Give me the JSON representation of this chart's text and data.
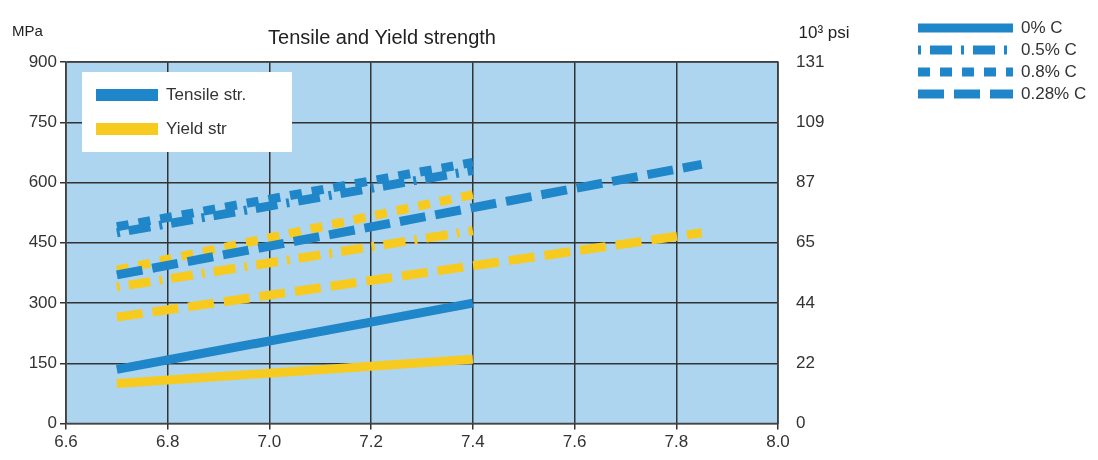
{
  "chart_data": {
    "type": "line",
    "title": "Tensile and Yield strength",
    "ylabel": "MPa",
    "y2label": "10³ psi",
    "xlim": [
      6.6,
      8.0
    ],
    "xticks": [
      6.6,
      6.8,
      {
        "value": 7,
        "label": "7.0"
      },
      7.2,
      7.4,
      7.6,
      7.8,
      {
        "value": 8,
        "label": "8.0"
      }
    ],
    "ylim": [
      0,
      900
    ],
    "yticks": [
      0,
      150,
      300,
      450,
      600,
      750,
      900
    ],
    "y2lim": [
      0,
      130.5
    ],
    "y2ticks": [
      0,
      {
        "value": 21.75,
        "label": "22"
      },
      {
        "value": 43.5,
        "label": "44"
      },
      {
        "value": 65.25,
        "label": "65"
      },
      87,
      {
        "value": 108.75,
        "label": "109"
      },
      {
        "value": 130.5,
        "label": "131"
      }
    ],
    "grid": true,
    "marker": "none",
    "series": [
      {
        "color": "#1f87c9",
        "line_style": "solid",
        "x": [
          6.7,
          7.4
        ],
        "values": [
          135,
          300
        ]
      },
      {
        "color": "#f7ca1f",
        "line_style": "solid",
        "x": [
          6.7,
          7.4
        ],
        "values": [
          100,
          160
        ]
      },
      {
        "color": "#1f87c9",
        "line_style": "dashdot",
        "x": [
          6.7,
          7.4
        ],
        "values": [
          475,
          630
        ]
      },
      {
        "color": "#1f87c9",
        "line_style": "dotted",
        "x": [
          6.7,
          7.4
        ],
        "values": [
          490,
          650
        ]
      },
      {
        "color": "#1f87c9",
        "line_style": "dashed",
        "x": [
          6.7,
          7.85
        ],
        "values": [
          370,
          645
        ]
      },
      {
        "color": "#f7ca1f",
        "line_style": "dashdot",
        "x": [
          6.7,
          7.4
        ],
        "values": [
          340,
          480
        ]
      },
      {
        "color": "#f7ca1f",
        "line_style": "dotted",
        "x": [
          6.7,
          7.4
        ],
        "values": [
          382,
          570
        ]
      },
      {
        "color": "#f7ca1f",
        "line_style": "dashed",
        "x": [
          6.7,
          7.85
        ],
        "values": [
          265,
          475
        ]
      }
    ],
    "annotations": [
      "Tensile str.",
      "Yield str",
      "0% C",
      "0.5% C",
      "0.8% C",
      "0.28% C"
    ]
  }
}
